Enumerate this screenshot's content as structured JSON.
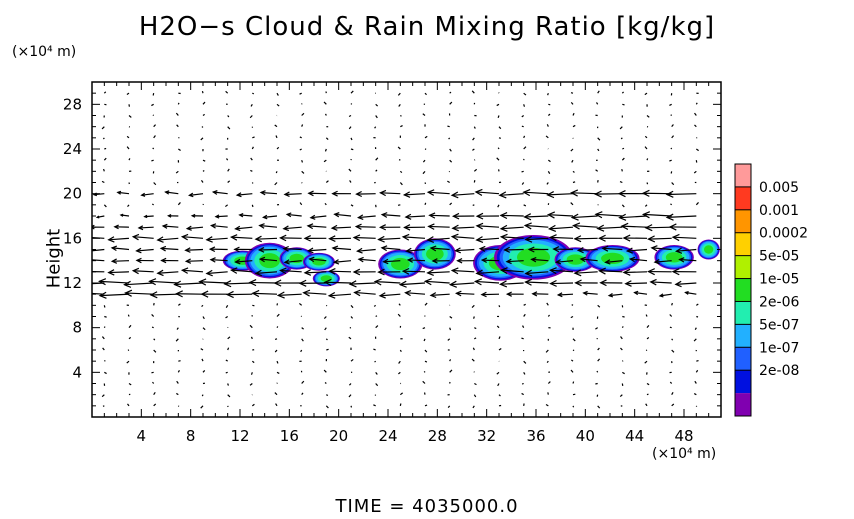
{
  "chart_data": {
    "type": "contour",
    "title": "H2O−s Cloud & Rain Mixing Ratio [kg/kg]",
    "xlabel": "",
    "ylabel": "Height",
    "x_unit": "(×10⁴ m)",
    "y_unit": "(×10⁴ m)",
    "xlim": [
      0,
      51
    ],
    "ylim": [
      0,
      30
    ],
    "x_ticks": [
      "4",
      "8",
      "12",
      "16",
      "20",
      "24",
      "28",
      "32",
      "36",
      "40",
      "44",
      "48"
    ],
    "y_ticks": [
      "4",
      "8",
      "12",
      "16",
      "20",
      "24",
      "28"
    ],
    "colorbar": {
      "levels": [
        "0.005",
        "0.001",
        "0.0002",
        "5e-05",
        "1e-05",
        "2e-06",
        "5e-07",
        "1e-07",
        "2e-08"
      ],
      "colors": [
        "#ff9a9a",
        "#ff3a20",
        "#ff9500",
        "#ffd000",
        "#b0f000",
        "#22dd22",
        "#22eeb0",
        "#22b0ff",
        "#2060ff",
        "#0010e0",
        "#8000b0"
      ]
    },
    "cloud_cells": [
      {
        "x": 12.2,
        "y": 14.0,
        "wx": 1.6,
        "wy": 0.9
      },
      {
        "x": 14.4,
        "y": 14.0,
        "wx": 2.0,
        "wy": 1.6
      },
      {
        "x": 16.6,
        "y": 14.2,
        "wx": 1.4,
        "wy": 1.0
      },
      {
        "x": 18.4,
        "y": 13.9,
        "wx": 1.3,
        "wy": 0.8
      },
      {
        "x": 19.0,
        "y": 12.4,
        "wx": 1.1,
        "wy": 0.7
      },
      {
        "x": 25.0,
        "y": 13.7,
        "wx": 1.8,
        "wy": 1.3
      },
      {
        "x": 27.8,
        "y": 14.6,
        "wx": 1.7,
        "wy": 1.4
      },
      {
        "x": 33.1,
        "y": 13.8,
        "wx": 2.2,
        "wy": 1.6
      },
      {
        "x": 35.8,
        "y": 14.3,
        "wx": 3.2,
        "wy": 2.0
      },
      {
        "x": 39.2,
        "y": 14.1,
        "wx": 1.7,
        "wy": 1.1
      },
      {
        "x": 42.2,
        "y": 14.2,
        "wx": 2.2,
        "wy": 1.2
      },
      {
        "x": 47.2,
        "y": 14.3,
        "wx": 1.6,
        "wy": 1.1
      },
      {
        "x": 50.0,
        "y": 15.0,
        "wx": 0.9,
        "wy": 0.9
      }
    ],
    "wind_bands": [
      {
        "y": 20,
        "u_start": 0.3,
        "u_end": 0.9
      },
      {
        "y": 18,
        "u_start": 0.2,
        "u_end": 0.9
      },
      {
        "y": 17,
        "u_start": 0.4,
        "u_end": 0.8
      },
      {
        "y": 16,
        "u_start": 0.6,
        "u_end": 0.7
      },
      {
        "y": 15,
        "u_start": 0.5,
        "u_end": 0.6
      },
      {
        "y": 14,
        "u_start": 0.5,
        "u_end": 0.5
      },
      {
        "y": 13,
        "u_start": 0.6,
        "u_end": 0.7
      },
      {
        "y": 12,
        "u_start": 0.9,
        "u_end": 0.6
      },
      {
        "y": 11,
        "u_start": 0.9,
        "u_end": 0.3
      }
    ]
  },
  "footer": "TIME  =  4035000.0"
}
